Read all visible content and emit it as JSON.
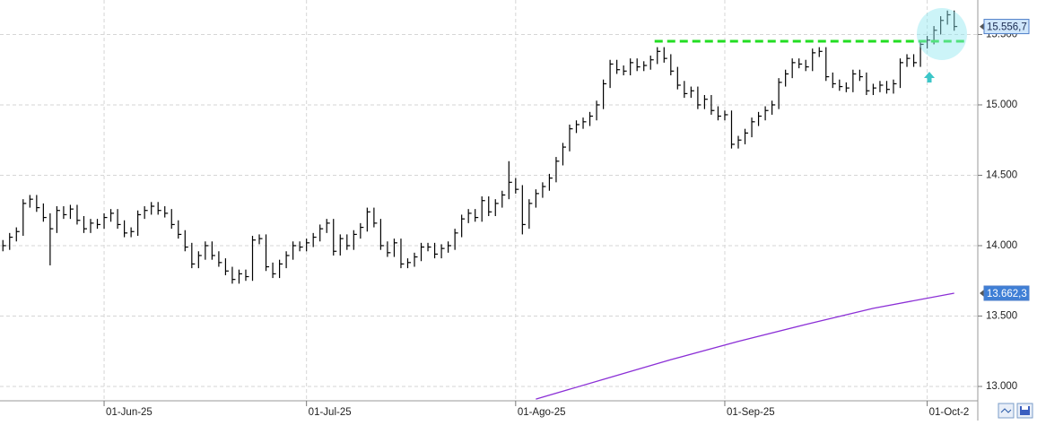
{
  "chart_data": {
    "type": "hlc",
    "xlim": [
      -15.43,
      129.5
    ],
    "ylim": [
      12898,
      15745
    ],
    "xticks": [
      {
        "value": 0,
        "label": "01-Jun-25"
      },
      {
        "value": 30,
        "label": "01-Jul-25"
      },
      {
        "value": 61,
        "label": "01-Ago-25"
      },
      {
        "value": 92,
        "label": "01-Sep-25"
      },
      {
        "value": 122,
        "label": "01-Oct-2"
      }
    ],
    "yticks": [
      {
        "value": 13000,
        "label": "13.000"
      },
      {
        "value": 13500,
        "label": "13.500"
      },
      {
        "value": 14000,
        "label": "14.000"
      },
      {
        "value": 14500,
        "label": "14.500"
      },
      {
        "value": 15000,
        "label": "15.000"
      },
      {
        "value": 15500,
        "label": "15.500"
      }
    ],
    "grid": true,
    "hline": {
      "value": 15452,
      "x": [
        81.6,
        127.5
      ],
      "color": "#22dd22"
    },
    "series": [
      {
        "type": "hlc",
        "color": "#000000",
        "x": [
          -15,
          -14,
          -13,
          -12,
          -11,
          -10,
          -9,
          -8,
          -7,
          -6,
          -5,
          -4,
          -3,
          -2,
          -1,
          0,
          1,
          2,
          3,
          4,
          5,
          6,
          7,
          8,
          9,
          10,
          11,
          12,
          13,
          14,
          15,
          16,
          17,
          18,
          19,
          20,
          21,
          22,
          23,
          24,
          25,
          26,
          27,
          28,
          29,
          30,
          31,
          32,
          33,
          34,
          35,
          36,
          37,
          38,
          39,
          40,
          41,
          42,
          43,
          44,
          45,
          46,
          47,
          48,
          49,
          50,
          51,
          52,
          53,
          54,
          55,
          56,
          57,
          58,
          59,
          60,
          61,
          62,
          63,
          64,
          65,
          66,
          67,
          68,
          69,
          70,
          71,
          72,
          73,
          74,
          75,
          76,
          77,
          78,
          79,
          80,
          81,
          82,
          83,
          84,
          85,
          86,
          87,
          88,
          89,
          90,
          91,
          92,
          93,
          94,
          95,
          96,
          97,
          98,
          99,
          100,
          101,
          102,
          103,
          104,
          105,
          106,
          107,
          108,
          109,
          110,
          111,
          112,
          113,
          114,
          115,
          116,
          117,
          118,
          119,
          120,
          121,
          122,
          123,
          124,
          125,
          126
        ],
        "high": [
          14040,
          14090,
          14130,
          14330,
          14360,
          14360,
          14300,
          14230,
          14280,
          14280,
          14290,
          14290,
          14210,
          14190,
          14190,
          14230,
          14260,
          14260,
          14180,
          14130,
          14250,
          14280,
          14310,
          14310,
          14280,
          14260,
          14180,
          14110,
          14020,
          13960,
          14030,
          14030,
          13960,
          13910,
          13850,
          13830,
          13830,
          14070,
          14080,
          14080,
          13880,
          13900,
          13960,
          14030,
          14030,
          14050,
          14090,
          14150,
          14190,
          14190,
          14080,
          14080,
          14110,
          14160,
          14270,
          14270,
          14190,
          14030,
          14050,
          14050,
          13910,
          13950,
          14020,
          14020,
          14020,
          14010,
          14030,
          14120,
          14220,
          14260,
          14260,
          14350,
          14350,
          14330,
          14390,
          14600,
          14480,
          14430,
          14330,
          14400,
          14450,
          14510,
          14630,
          14730,
          14860,
          14890,
          14910,
          14950,
          15030,
          15180,
          15320,
          15320,
          15280,
          15330,
          15330,
          15310,
          15350,
          15410,
          15410,
          15360,
          15270,
          15170,
          15130,
          15130,
          15070,
          15070,
          14990,
          14960,
          14960,
          14780,
          14830,
          14910,
          14950,
          14990,
          15030,
          15190,
          15250,
          15330,
          15330,
          15320,
          15400,
          15410,
          15410,
          15230,
          15180,
          15160,
          15250,
          15250,
          15230,
          15150,
          15170,
          15170,
          15180,
          15330,
          15360,
          15360,
          15460,
          15490,
          15560,
          15630,
          15670,
          15670
        ],
        "low": [
          13960,
          13970,
          14030,
          14070,
          14270,
          14240,
          14170,
          13860,
          14090,
          14190,
          14190,
          14150,
          14090,
          14090,
          14120,
          14120,
          14170,
          14120,
          14060,
          14060,
          14070,
          14190,
          14220,
          14220,
          14200,
          14120,
          14050,
          13960,
          13840,
          13840,
          13900,
          13900,
          13850,
          13790,
          13730,
          13730,
          13750,
          13750,
          14010,
          13820,
          13770,
          13770,
          13840,
          13900,
          13960,
          13960,
          13990,
          14030,
          14090,
          13930,
          13930,
          13970,
          13970,
          14050,
          14100,
          14130,
          13970,
          13920,
          13920,
          13840,
          13840,
          13850,
          13890,
          13960,
          13910,
          13910,
          13950,
          13970,
          14060,
          14160,
          14170,
          14170,
          14210,
          14210,
          14270,
          14330,
          14370,
          14080,
          14120,
          14270,
          14340,
          14390,
          14450,
          14570,
          14670,
          14800,
          14830,
          14850,
          14890,
          14970,
          15120,
          15220,
          15210,
          15210,
          15240,
          15240,
          15250,
          15290,
          15300,
          15210,
          15110,
          15050,
          15050,
          14970,
          14970,
          14930,
          14890,
          14890,
          14690,
          14690,
          14720,
          14770,
          14850,
          14890,
          14930,
          14970,
          15130,
          15190,
          15260,
          15240,
          15240,
          15340,
          15170,
          15120,
          15100,
          15090,
          15090,
          15170,
          15070,
          15070,
          15090,
          15080,
          15080,
          15120,
          15270,
          15270,
          15270,
          15400,
          15430,
          15500,
          15570,
          15526.7
        ],
        "close": [
          14000,
          14060,
          14100,
          14300,
          14330,
          14270,
          14200,
          14120,
          14250,
          14220,
          14260,
          14180,
          14120,
          14160,
          14150,
          14200,
          14230,
          14150,
          14090,
          14100,
          14220,
          14250,
          14280,
          14250,
          14230,
          14150,
          14080,
          13990,
          13870,
          13930,
          14000,
          13930,
          13880,
          13820,
          13760,
          13800,
          13780,
          14040,
          14050,
          13850,
          13800,
          13870,
          13930,
          14000,
          13990,
          14020,
          14060,
          14120,
          14160,
          13960,
          14050,
          14000,
          14080,
          14130,
          14240,
          14160,
          14000,
          13950,
          14020,
          13870,
          13880,
          13920,
          13990,
          13990,
          13940,
          13980,
          14000,
          14090,
          14190,
          14230,
          14200,
          14320,
          14240,
          14300,
          14360,
          14450,
          14400,
          14150,
          14300,
          14370,
          14420,
          14480,
          14600,
          14700,
          14830,
          14860,
          14880,
          14920,
          15000,
          15150,
          15290,
          15250,
          15240,
          15300,
          15270,
          15280,
          15320,
          15380,
          15330,
          15240,
          15140,
          15080,
          15100,
          15000,
          15040,
          14960,
          14920,
          14930,
          14720,
          14750,
          14800,
          14880,
          14920,
          14960,
          15000,
          15160,
          15220,
          15300,
          15290,
          15270,
          15370,
          15380,
          15200,
          15150,
          15130,
          15120,
          15220,
          15200,
          15100,
          15120,
          15140,
          15110,
          15150,
          15300,
          15330,
          15300,
          15430,
          15460,
          15530,
          15600,
          15640,
          15556.7
        ],
        "value_labels": [
          null,
          null,
          null,
          null,
          null,
          null,
          null,
          null,
          null,
          null,
          null,
          null,
          null,
          null,
          null,
          null,
          null,
          null,
          null,
          null,
          null,
          null,
          null,
          null,
          null,
          null,
          null,
          null,
          null,
          null,
          null,
          null,
          null,
          null,
          null,
          null,
          null,
          null,
          null,
          null,
          null,
          null,
          null,
          null,
          null,
          null,
          null,
          null,
          null,
          null,
          null,
          null,
          null,
          null,
          null,
          null,
          null,
          null,
          null,
          null,
          null,
          null,
          null,
          null,
          null,
          null,
          null,
          null,
          null,
          null,
          null,
          null,
          null,
          null,
          null,
          null,
          null,
          null,
          null,
          null,
          null,
          null,
          null,
          null,
          null,
          null,
          null,
          null,
          null,
          null,
          null,
          null,
          null,
          null,
          null,
          null,
          null,
          null,
          null,
          null,
          null,
          null,
          null,
          null,
          null,
          null,
          null,
          null,
          null,
          null,
          null,
          null,
          null,
          null,
          null,
          null,
          null,
          null,
          null,
          null,
          null,
          null,
          null,
          null,
          null,
          null,
          null,
          null,
          null,
          null,
          null,
          null,
          null,
          null,
          null,
          null,
          null,
          null,
          null,
          null,
          null,
          "15.556,7"
        ]
      },
      {
        "type": "line",
        "color": "#8b2fd6",
        "x": [
          64,
          74,
          84,
          94,
          104,
          114,
          126
        ],
        "values": [
          12910,
          13050,
          13190,
          13320,
          13440,
          13555,
          13662.3
        ],
        "value_labels": [
          null,
          null,
          null,
          null,
          null,
          null,
          "13.662,3"
        ]
      }
    ]
  }
}
